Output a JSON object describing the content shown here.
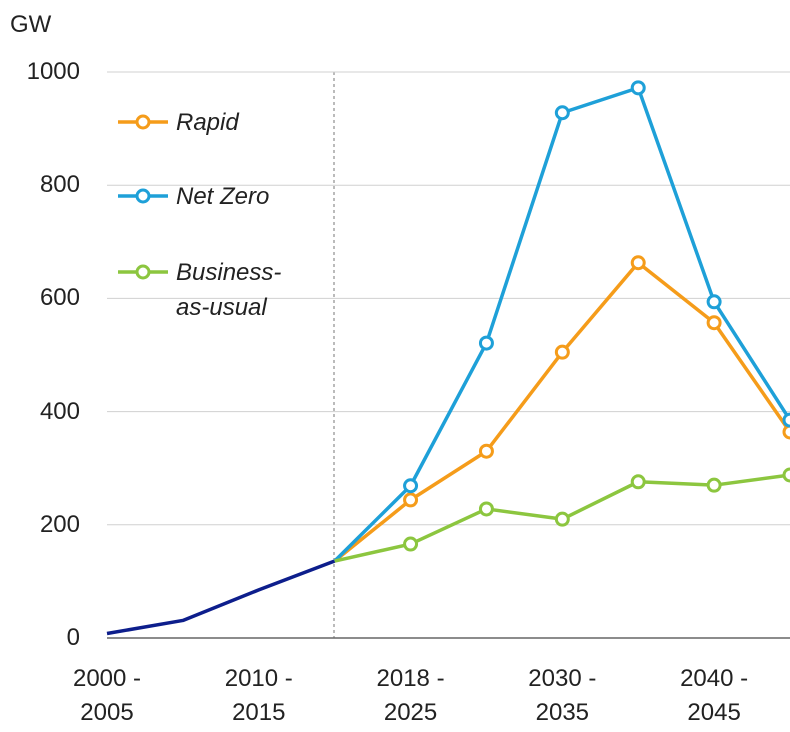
{
  "chart_data": {
    "type": "line",
    "y_label": "GW",
    "categories": [
      "2000 - 2005",
      null,
      "2010 - 2015",
      null,
      "2018 - 2025",
      null,
      "2030 - 2035",
      null,
      "2040 - 2045",
      null
    ],
    "series": [
      {
        "color": "#0d1e8c",
        "values": [
          8,
          31,
          85,
          136,
          null,
          null,
          null,
          null,
          null,
          null
        ]
      },
      {
        "name": "Rapid",
        "color": "#f59c1a",
        "values": [
          null,
          null,
          null,
          136,
          244,
          330,
          505,
          663,
          557,
          364
        ]
      },
      {
        "name": "Net Zero",
        "color": "#1ea0d8",
        "values": [
          null,
          null,
          null,
          136,
          269,
          521,
          928,
          972,
          594,
          385
        ]
      },
      {
        "name": "Business-as-usual",
        "color": "#8cc63f",
        "values": [
          null,
          null,
          null,
          136,
          166,
          228,
          210,
          276,
          270,
          288
        ]
      }
    ],
    "ylim": [
      0,
      1000
    ],
    "yticks": [
      0,
      200,
      400,
      600,
      800,
      1000
    ],
    "grid": true
  }
}
